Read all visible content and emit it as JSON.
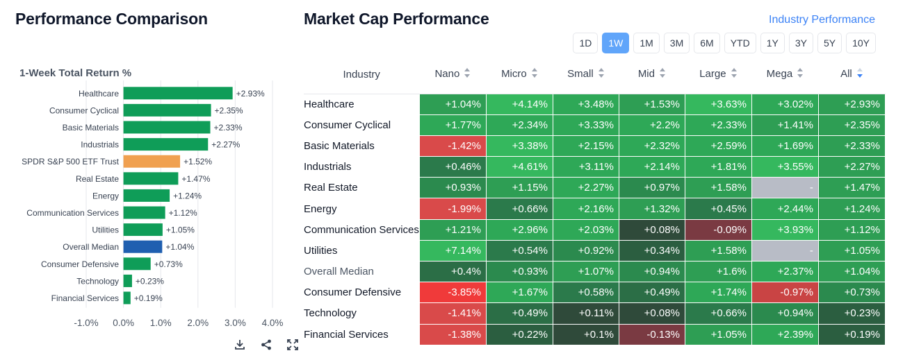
{
  "left_title": "Performance Comparison",
  "chart_data": {
    "type": "bar",
    "orientation": "horizontal",
    "title": "1-Week Total Return %",
    "categories": [
      "Healthcare",
      "Consumer Cyclical",
      "Basic Materials",
      "Industrials",
      "SPDR S&P 500 ETF Trust",
      "Real Estate",
      "Energy",
      "Communication Services",
      "Utilities",
      "Overall Median",
      "Consumer Defensive",
      "Technology",
      "Financial Services"
    ],
    "values": [
      2.93,
      2.35,
      2.33,
      2.27,
      1.52,
      1.47,
      1.24,
      1.12,
      1.05,
      1.04,
      0.73,
      0.23,
      0.19
    ],
    "data_labels": [
      "+2.93%",
      "+2.35%",
      "+2.33%",
      "+2.27%",
      "+1.52%",
      "+1.47%",
      "+1.24%",
      "+1.12%",
      "+1.05%",
      "+1.04%",
      "+0.73%",
      "+0.23%",
      "+0.19%"
    ],
    "bar_colors": [
      "#0f9d58",
      "#0f9d58",
      "#0f9d58",
      "#0f9d58",
      "#f0a050",
      "#0f9d58",
      "#0f9d58",
      "#0f9d58",
      "#0f9d58",
      "#1f5fb0",
      "#0f9d58",
      "#0f9d58",
      "#0f9d58"
    ],
    "xlim": [
      -1.0,
      4.0
    ],
    "xticks": [
      -1.0,
      0.0,
      1.0,
      2.0,
      3.0,
      4.0
    ],
    "xtick_labels": [
      "-1.0%",
      "0.0%",
      "1.0%",
      "2.0%",
      "3.0%",
      "4.0%"
    ],
    "grid": true
  },
  "chart_icons": [
    "download-icon",
    "share-icon",
    "expand-icon"
  ],
  "right_title": "Market Cap Performance",
  "industry_link": "Industry Performance",
  "periods": [
    "1D",
    "1W",
    "1M",
    "3M",
    "6M",
    "YTD",
    "1Y",
    "3Y",
    "5Y",
    "10Y"
  ],
  "active_period": "1W",
  "table": {
    "headers": [
      "Industry",
      "Nano",
      "Micro",
      "Small",
      "Mid",
      "Large",
      "Mega",
      "All"
    ],
    "sorted_column": "All",
    "rows": [
      {
        "industry": "Healthcare",
        "values": [
          "+1.04%",
          "+4.14%",
          "+3.48%",
          "+1.53%",
          "+3.63%",
          "+3.02%",
          "+2.93%"
        ],
        "colors": [
          "#2e9e54",
          "#35b85e",
          "#2ea857",
          "#2e9e54",
          "#35b85e",
          "#2ea857",
          "#2e9e54"
        ]
      },
      {
        "industry": "Consumer Cyclical",
        "values": [
          "+1.77%",
          "+2.34%",
          "+3.33%",
          "+2.2%",
          "+2.33%",
          "+1.41%",
          "+2.35%"
        ],
        "colors": [
          "#2ea857",
          "#2ea857",
          "#2ea857",
          "#2ea857",
          "#2ea857",
          "#2e9e54",
          "#2e9e54"
        ]
      },
      {
        "industry": "Basic Materials",
        "values": [
          "-1.42%",
          "+3.38%",
          "+2.15%",
          "+2.32%",
          "+2.59%",
          "+1.69%",
          "+2.33%"
        ],
        "colors": [
          "#d94a4a",
          "#35b85e",
          "#2ea857",
          "#2ea857",
          "#2ea857",
          "#2ea857",
          "#2e9e54"
        ]
      },
      {
        "industry": "Industrials",
        "values": [
          "+0.46%",
          "+4.61%",
          "+3.11%",
          "+2.14%",
          "+1.81%",
          "+3.55%",
          "+2.27%"
        ],
        "colors": [
          "#2b7a4b",
          "#35b85e",
          "#2ea857",
          "#2ea857",
          "#2ea857",
          "#35b85e",
          "#2e9e54"
        ]
      },
      {
        "industry": "Real Estate",
        "values": [
          "+0.93%",
          "+1.15%",
          "+2.27%",
          "+0.97%",
          "+1.58%",
          "-",
          "+1.47%"
        ],
        "colors": [
          "#2b8a4e",
          "#2e9e54",
          "#2ea857",
          "#2b8a4e",
          "#2e9e54",
          "#b8bcc6",
          "#2e9e54"
        ]
      },
      {
        "industry": "Energy",
        "values": [
          "-1.99%",
          "+0.66%",
          "+2.16%",
          "+1.32%",
          "+0.45%",
          "+2.44%",
          "+1.24%"
        ],
        "colors": [
          "#d94a4a",
          "#2b7a4b",
          "#2ea857",
          "#2e9e54",
          "#2b7a4b",
          "#2ea857",
          "#2e9e54"
        ]
      },
      {
        "industry": "Communication Services",
        "values": [
          "+1.21%",
          "+2.96%",
          "+2.03%",
          "+0.08%",
          "-0.09%",
          "+3.93%",
          "+1.12%"
        ],
        "colors": [
          "#2e9e54",
          "#2ea857",
          "#2ea857",
          "#2f4a3a",
          "#7a3a42",
          "#35b85e",
          "#2e9e54"
        ]
      },
      {
        "industry": "Utilities",
        "values": [
          "+7.14%",
          "+0.54%",
          "+0.92%",
          "+0.34%",
          "+1.58%",
          "-",
          "+1.05%"
        ],
        "colors": [
          "#35b85e",
          "#2b7a4b",
          "#2b8a4e",
          "#2b5e40",
          "#2e9e54",
          "#b8bcc6",
          "#2e9e54"
        ]
      },
      {
        "industry": "Overall Median",
        "values": [
          "+0.4%",
          "+0.93%",
          "+1.07%",
          "+0.94%",
          "+1.6%",
          "+2.37%",
          "+1.04%"
        ],
        "colors": [
          "#2b6e46",
          "#2b8a4e",
          "#2e9e54",
          "#2b8a4e",
          "#2e9e54",
          "#2ea857",
          "#2e9e54"
        ]
      },
      {
        "industry": "Consumer Defensive",
        "values": [
          "-3.85%",
          "+1.67%",
          "+0.58%",
          "+0.49%",
          "+1.74%",
          "-0.97%",
          "+0.73%"
        ],
        "colors": [
          "#f03a3a",
          "#2ea857",
          "#2b7a4b",
          "#2b6e46",
          "#2ea857",
          "#c94444",
          "#2b8a4e"
        ]
      },
      {
        "industry": "Technology",
        "values": [
          "-1.41%",
          "+0.49%",
          "+0.11%",
          "+0.08%",
          "+0.66%",
          "+0.94%",
          "+0.23%"
        ],
        "colors": [
          "#d94a4a",
          "#2b6e46",
          "#2f4a3a",
          "#2f4a3a",
          "#2b7a4b",
          "#2b8a4e",
          "#2b5e40"
        ]
      },
      {
        "industry": "Financial Services",
        "values": [
          "-1.38%",
          "+0.22%",
          "+0.1%",
          "-0.13%",
          "+1.05%",
          "+2.39%",
          "+0.19%"
        ],
        "colors": [
          "#d94a4a",
          "#2b5e40",
          "#2f4a3a",
          "#7a3a42",
          "#2e9e54",
          "#2ea857",
          "#2b5e40"
        ]
      }
    ]
  }
}
